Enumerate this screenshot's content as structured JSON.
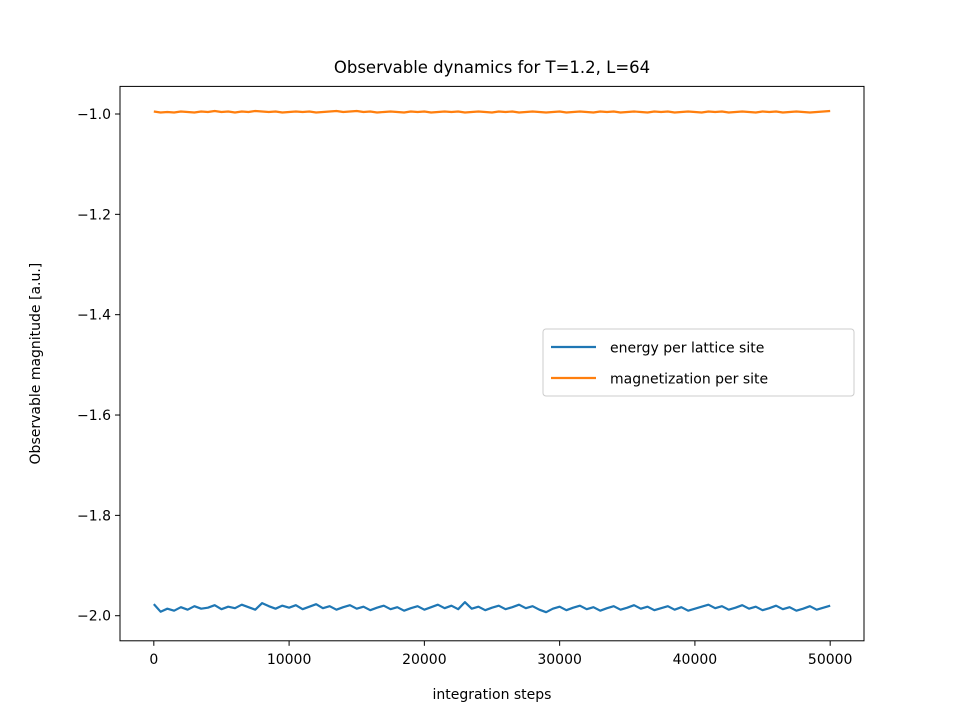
{
  "chart_data": {
    "type": "line",
    "title": "Observable dynamics for T=1.2, L=64",
    "xlabel": "integration steps",
    "ylabel": "Observable magnitude [a.u.]",
    "xlim": [
      -2500,
      52500
    ],
    "ylim": [
      -2.05,
      -0.945
    ],
    "xticks": [
      0,
      10000,
      20000,
      30000,
      40000,
      50000
    ],
    "xtick_labels": [
      "0",
      "10000",
      "20000",
      "30000",
      "40000",
      "50000"
    ],
    "yticks": [
      -2.0,
      -1.8,
      -1.6,
      -1.4,
      -1.2,
      -1.0
    ],
    "ytick_labels": [
      "−2.0",
      "−1.8",
      "−1.6",
      "−1.4",
      "−1.2",
      "−1.0"
    ],
    "grid": false,
    "legend_placement": "center-right",
    "series": [
      {
        "name": "energy per lattice site",
        "color": "#1f77b4",
        "x": [
          0,
          500,
          1000,
          1500,
          2000,
          2500,
          3000,
          3500,
          4000,
          4500,
          5000,
          5500,
          6000,
          6500,
          7000,
          7500,
          8000,
          8500,
          9000,
          9500,
          10000,
          10500,
          11000,
          11500,
          12000,
          12500,
          13000,
          13500,
          14000,
          14500,
          15000,
          15500,
          16000,
          16500,
          17000,
          17500,
          18000,
          18500,
          19000,
          19500,
          20000,
          20500,
          21000,
          21500,
          22000,
          22500,
          23000,
          23500,
          24000,
          24500,
          25000,
          25500,
          26000,
          26500,
          27000,
          27500,
          28000,
          28500,
          29000,
          29500,
          30000,
          30500,
          31000,
          31500,
          32000,
          32500,
          33000,
          33500,
          34000,
          34500,
          35000,
          35500,
          36000,
          36500,
          37000,
          37500,
          38000,
          38500,
          39000,
          39500,
          40000,
          40500,
          41000,
          41500,
          42000,
          42500,
          43000,
          43500,
          44000,
          44500,
          45000,
          45500,
          46000,
          46500,
          47000,
          47500,
          48000,
          48500,
          49000,
          49500,
          50000
        ],
        "values": [
          -1.977,
          -1.992,
          -1.986,
          -1.99,
          -1.983,
          -1.988,
          -1.981,
          -1.986,
          -1.984,
          -1.979,
          -1.987,
          -1.982,
          -1.985,
          -1.978,
          -1.983,
          -1.988,
          -1.975,
          -1.981,
          -1.986,
          -1.98,
          -1.984,
          -1.979,
          -1.987,
          -1.982,
          -1.977,
          -1.985,
          -1.981,
          -1.988,
          -1.983,
          -1.979,
          -1.986,
          -1.982,
          -1.989,
          -1.984,
          -1.98,
          -1.987,
          -1.983,
          -1.99,
          -1.985,
          -1.981,
          -1.988,
          -1.983,
          -1.978,
          -1.985,
          -1.98,
          -1.987,
          -1.973,
          -1.986,
          -1.982,
          -1.989,
          -1.984,
          -1.98,
          -1.987,
          -1.983,
          -1.978,
          -1.985,
          -1.981,
          -1.988,
          -1.993,
          -1.986,
          -1.982,
          -1.989,
          -1.984,
          -1.98,
          -1.987,
          -1.983,
          -1.99,
          -1.985,
          -1.981,
          -1.988,
          -1.984,
          -1.979,
          -1.986,
          -1.982,
          -1.989,
          -1.985,
          -1.981,
          -1.988,
          -1.983,
          -1.99,
          -1.986,
          -1.982,
          -1.978,
          -1.985,
          -1.981,
          -1.988,
          -1.984,
          -1.979,
          -1.986,
          -1.982,
          -1.989,
          -1.985,
          -1.98,
          -1.987,
          -1.983,
          -1.99,
          -1.986,
          -1.981,
          -1.988,
          -1.984,
          -1.98
        ]
      },
      {
        "name": "magnetization per site",
        "color": "#ff7f0e",
        "x": [
          0,
          500,
          1000,
          1500,
          2000,
          2500,
          3000,
          3500,
          4000,
          4500,
          5000,
          5500,
          6000,
          6500,
          7000,
          7500,
          8000,
          8500,
          9000,
          9500,
          10000,
          10500,
          11000,
          11500,
          12000,
          12500,
          13000,
          13500,
          14000,
          14500,
          15000,
          15500,
          16000,
          16500,
          17000,
          17500,
          18000,
          18500,
          19000,
          19500,
          20000,
          20500,
          21000,
          21500,
          22000,
          22500,
          23000,
          23500,
          24000,
          24500,
          25000,
          25500,
          26000,
          26500,
          27000,
          27500,
          28000,
          28500,
          29000,
          29500,
          30000,
          30500,
          31000,
          31500,
          32000,
          32500,
          33000,
          33500,
          34000,
          34500,
          35000,
          35500,
          36000,
          36500,
          37000,
          37500,
          38000,
          38500,
          39000,
          39500,
          40000,
          40500,
          41000,
          41500,
          42000,
          42500,
          43000,
          43500,
          44000,
          44500,
          45000,
          45500,
          46000,
          46500,
          47000,
          47500,
          48000,
          48500,
          49000,
          49500,
          50000
        ],
        "values": [
          -0.995,
          -0.997,
          -0.996,
          -0.997,
          -0.995,
          -0.996,
          -0.997,
          -0.995,
          -0.996,
          -0.994,
          -0.996,
          -0.995,
          -0.997,
          -0.995,
          -0.996,
          -0.994,
          -0.995,
          -0.996,
          -0.995,
          -0.997,
          -0.996,
          -0.995,
          -0.996,
          -0.995,
          -0.997,
          -0.996,
          -0.995,
          -0.994,
          -0.996,
          -0.995,
          -0.994,
          -0.996,
          -0.995,
          -0.997,
          -0.996,
          -0.995,
          -0.996,
          -0.997,
          -0.995,
          -0.996,
          -0.995,
          -0.997,
          -0.996,
          -0.995,
          -0.996,
          -0.995,
          -0.997,
          -0.996,
          -0.995,
          -0.996,
          -0.997,
          -0.995,
          -0.996,
          -0.995,
          -0.997,
          -0.996,
          -0.995,
          -0.996,
          -0.997,
          -0.996,
          -0.995,
          -0.997,
          -0.996,
          -0.995,
          -0.996,
          -0.997,
          -0.995,
          -0.996,
          -0.995,
          -0.997,
          -0.996,
          -0.995,
          -0.996,
          -0.997,
          -0.995,
          -0.996,
          -0.995,
          -0.997,
          -0.996,
          -0.995,
          -0.996,
          -0.997,
          -0.995,
          -0.996,
          -0.995,
          -0.997,
          -0.996,
          -0.995,
          -0.996,
          -0.997,
          -0.995,
          -0.996,
          -0.995,
          -0.997,
          -0.996,
          -0.995,
          -0.996,
          -0.997,
          -0.996,
          -0.995,
          -0.994
        ]
      }
    ]
  }
}
